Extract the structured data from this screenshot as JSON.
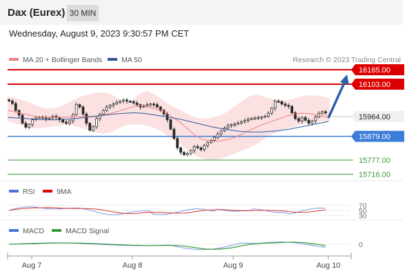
{
  "header": {
    "title": "Dax (Eurex)",
    "timeframe": "30 MIN"
  },
  "datetime": "Wednesday, August 9, 2023 9:30:57 PM CET",
  "legend": {
    "bollinger": "MA 20 + Bollinger Bands",
    "ma50": "MA 50",
    "credit": "Research © 2023 Trading Central"
  },
  "rsi_legend": {
    "rsi": "RSI",
    "ma": "9MA"
  },
  "macd_legend": {
    "macd": "MACD",
    "signal": "MACD Signal"
  },
  "colors": {
    "up": "#2a2a2a",
    "down": "#2a2a2a",
    "bollinger": "#f08080",
    "ma50": "#2f5597",
    "resistance": "#dd0000",
    "support_blue": "#3b7dd8",
    "support_green": "#3a9a3a",
    "arrow": "#2b5fa8"
  },
  "chart_data": {
    "type": "candlestick",
    "x_ticks": [
      "Aug 7",
      "Aug 8",
      "Aug 9",
      "Aug 10"
    ],
    "ylim": [
      15700,
      16180
    ],
    "levels": [
      {
        "value": 16165.0,
        "label": "16165.00",
        "kind": "resistance"
      },
      {
        "value": 16103.0,
        "label": "16103.00",
        "kind": "resistance"
      },
      {
        "value": 15964.0,
        "label": "15964.00",
        "kind": "last"
      },
      {
        "value": 15879.0,
        "label": "15879.00",
        "kind": "support"
      },
      {
        "value": 15777.0,
        "label": "15777.00",
        "kind": "target"
      },
      {
        "value": 15716.0,
        "label": "15716.00",
        "kind": "target"
      }
    ],
    "close": [
      16031,
      16020,
      15990,
      15970,
      15935,
      15918,
      15930,
      15950,
      15958,
      15962,
      15960,
      15955,
      15958,
      15965,
      15960,
      15950,
      15940,
      15935,
      15945,
      15972,
      16015,
      16005,
      15975,
      15935,
      15905,
      15920,
      15955,
      15975,
      15990,
      16005,
      16012,
      16018,
      16025,
      16030,
      16035,
      16030,
      16028,
      16022,
      16015,
      16005,
      16010,
      16015,
      16018,
      16015,
      16005,
      15990,
      15975,
      15950,
      15910,
      15870,
      15830,
      15810,
      15800,
      15805,
      15818,
      15835,
      15830,
      15822,
      15840,
      15852,
      15862,
      15875,
      15890,
      15902,
      15915,
      15925,
      15930,
      15932,
      15936,
      15942,
      15948,
      15952,
      15956,
      15958,
      15960,
      15962,
      15965,
      15978,
      16000,
      16030,
      16028,
      16018,
      16012,
      16008,
      15980,
      15955,
      15945,
      15960,
      15948,
      15935,
      15945,
      15962,
      15978,
      15985,
      15980
    ],
    "bollinger_mid": [
      15990,
      15985,
      15978,
      15972,
      15966,
      15962,
      15960,
      15960,
      15961,
      15962,
      15963,
      15963,
      15964,
      15966,
      15970,
      15975,
      15982,
      15990,
      16000,
      16008,
      16010,
      16005,
      15998,
      15990,
      15975,
      15955,
      15935,
      15910,
      15885,
      15868,
      15860,
      15858,
      15860,
      15866,
      15875,
      15888,
      15902,
      15915,
      15928,
      15938,
      15948,
      15958,
      15968,
      15975,
      15978,
      15977,
      15972,
      15966,
      15962
    ],
    "bollinger_upper": [
      16050,
      16045,
      16035,
      16025,
      16010,
      16000,
      15998,
      16005,
      16020,
      16035,
      16050,
      16060,
      16065,
      16068,
      16062,
      16045,
      16025,
      16030,
      16060,
      16075,
      16060,
      16040,
      16018,
      16000,
      15985,
      15968,
      15958,
      15955,
      15960,
      15968,
      15985,
      16008,
      16030,
      16050,
      16060,
      16050,
      16040,
      16035,
      16035,
      16040,
      16050,
      16055,
      16055,
      16050,
      16045
    ],
    "bollinger_lower": [
      15945,
      15935,
      15925,
      15915,
      15912,
      15915,
      15920,
      15925,
      15930,
      15925,
      15915,
      15905,
      15895,
      15890,
      15895,
      15910,
      15925,
      15930,
      15930,
      15925,
      15915,
      15900,
      15880,
      15860,
      15835,
      15810,
      15790,
      15780,
      15778,
      15782,
      15792,
      15805,
      15818,
      15830,
      15845,
      15865,
      15885,
      15900,
      15912,
      15920,
      15928,
      15935,
      15940,
      15942,
      15942
    ],
    "ma50": [
      15960,
      15958,
      15955,
      15952,
      15950,
      15950,
      15952,
      15955,
      15960,
      15965,
      15970,
      15975,
      15978,
      15980,
      15978,
      15972,
      15965,
      15958,
      15950,
      15940,
      15930,
      15920,
      15912,
      15905,
      15900,
      15898,
      15898,
      15900,
      15904,
      15910,
      15918,
      15926,
      15935,
      15942
    ],
    "rsi_ylim": [
      0,
      100
    ],
    "rsi_ticks": [
      70,
      50,
      30
    ],
    "macd_ticks": [
      0
    ]
  }
}
